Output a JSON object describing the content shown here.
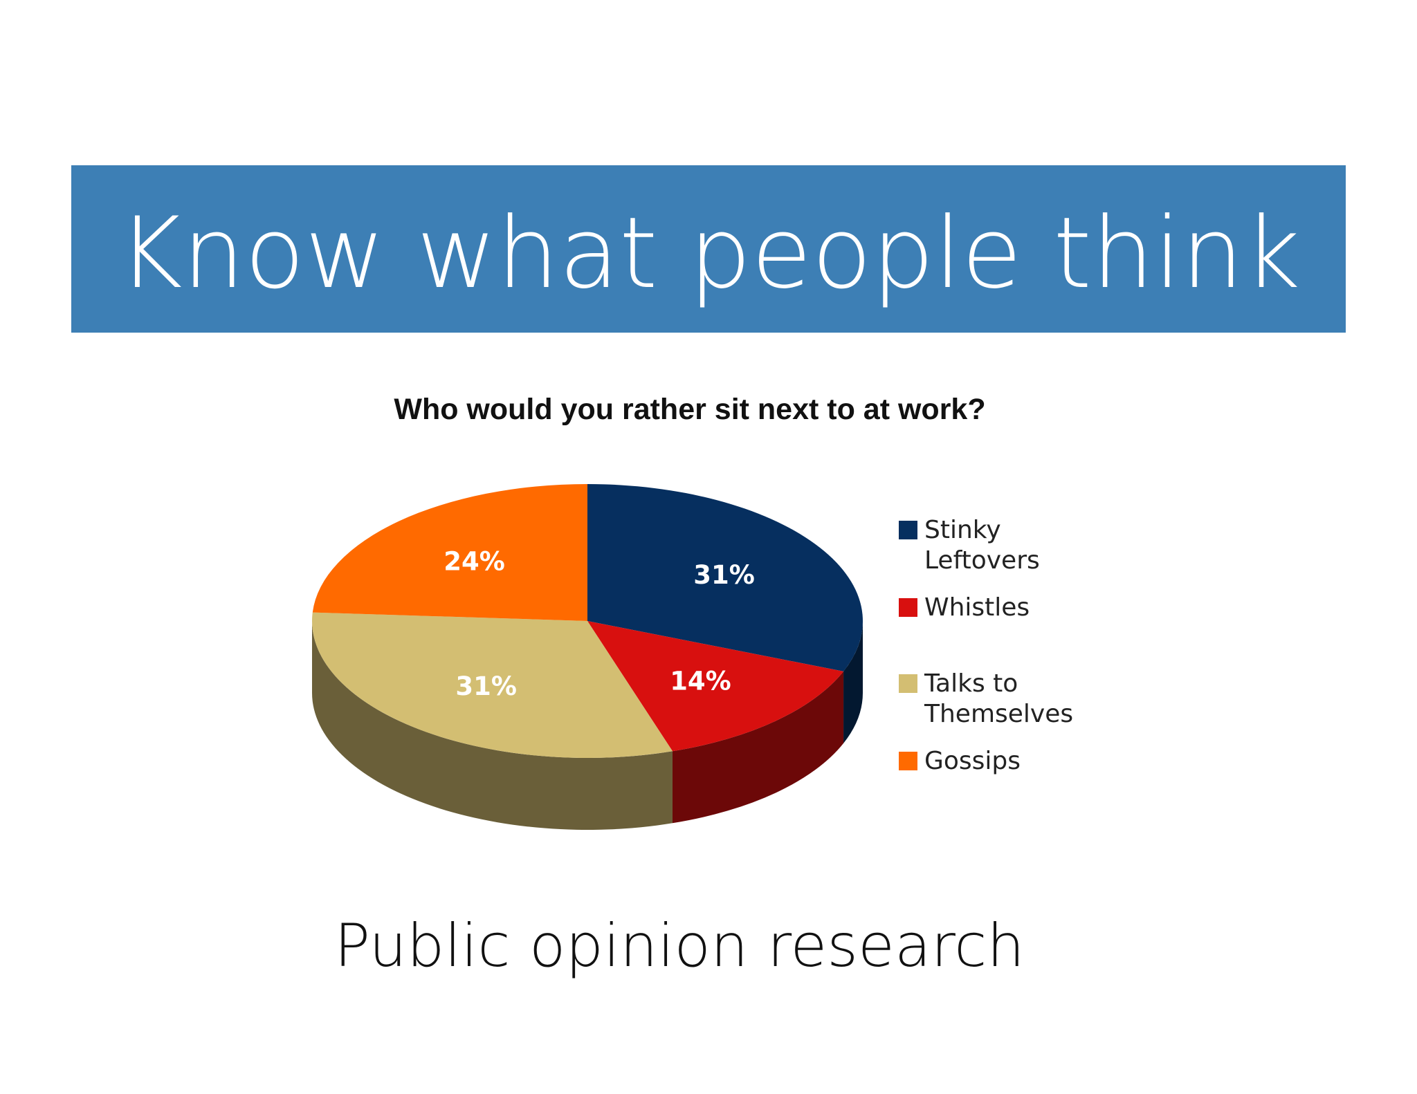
{
  "slide": {
    "title": "Know what people think",
    "caption": "Public opinion research"
  },
  "chart_data": {
    "type": "pie",
    "title": "Who would you rather sit next to at work?",
    "categories": [
      "Stinky Leftovers",
      "Whistles",
      "Talks to Themselves",
      "Gossips"
    ],
    "values": [
      31,
      14,
      31,
      24
    ],
    "value_labels": [
      "31%",
      "14%",
      "31%",
      "24%"
    ],
    "colors": [
      "#062f5f",
      "#d8100f",
      "#d3be72",
      "#ff6a00"
    ],
    "legend": "right"
  }
}
